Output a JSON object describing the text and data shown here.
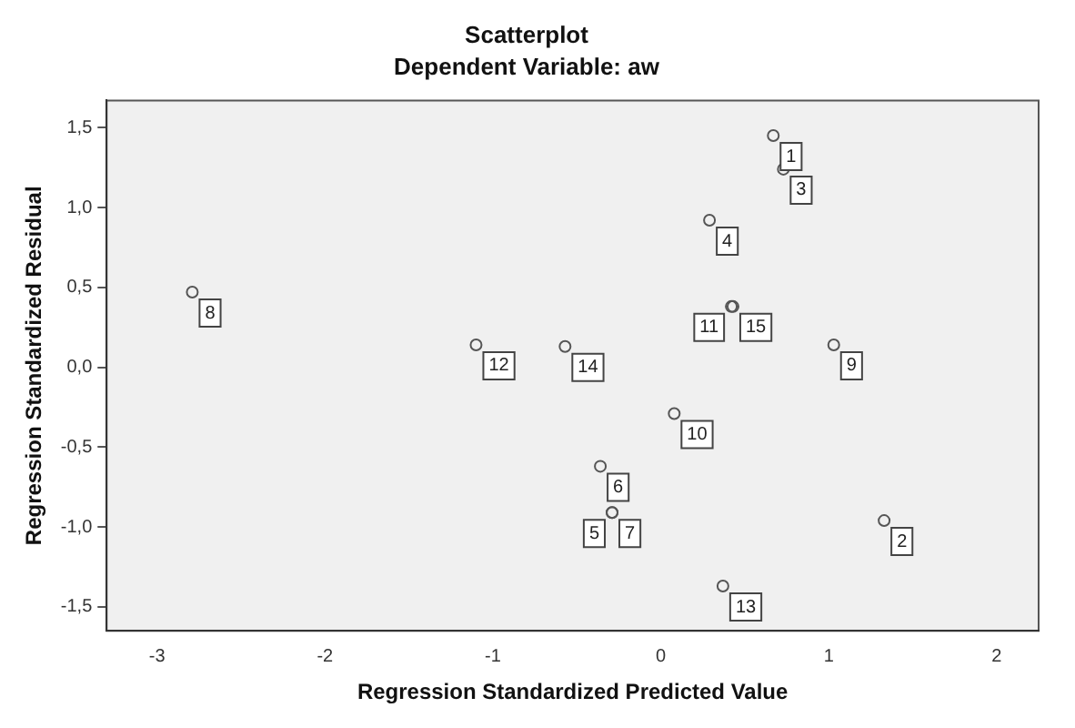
{
  "chart_data": {
    "type": "scatter",
    "title": "Scatterplot",
    "subtitle": "Dependent Variable: aw",
    "xlabel": "Regression Standardized Predicted Value",
    "ylabel": "Regression Standardized Residual",
    "x": [
      0.67,
      1.33,
      0.73,
      0.29,
      -0.29,
      -0.36,
      -0.29,
      -2.79,
      1.03,
      0.08,
      0.42,
      -1.1,
      0.37,
      -0.57,
      0.43
    ],
    "series": [
      {
        "color": "#555555",
        "values": [
          1.45,
          -0.96,
          1.24,
          0.92,
          -0.91,
          -0.62,
          -0.91,
          0.47,
          0.14,
          -0.29,
          0.38,
          0.14,
          -1.37,
          0.13,
          0.38
        ]
      }
    ],
    "annotations": [
      {
        "text": "1",
        "x": 0.67,
        "y": 1.45
      },
      {
        "text": "2",
        "x": 1.33,
        "y": -0.96
      },
      {
        "text": "3",
        "x": 0.73,
        "y": 1.24
      },
      {
        "text": "4",
        "x": 0.29,
        "y": 0.92
      },
      {
        "text": "5",
        "x": -0.29,
        "y": -0.91
      },
      {
        "text": "6",
        "x": -0.36,
        "y": -0.62
      },
      {
        "text": "7",
        "x": -0.29,
        "y": -0.91
      },
      {
        "text": "8",
        "x": -2.79,
        "y": 0.47
      },
      {
        "text": "9",
        "x": 1.03,
        "y": 0.14
      },
      {
        "text": "10",
        "x": 0.08,
        "y": -0.29
      },
      {
        "text": "11",
        "x": 0.42,
        "y": 0.38
      },
      {
        "text": "12",
        "x": -1.1,
        "y": 0.14
      },
      {
        "text": "13",
        "x": 0.37,
        "y": -1.37
      },
      {
        "text": "14",
        "x": -0.57,
        "y": 0.13
      },
      {
        "text": "15",
        "x": 0.43,
        "y": 0.38
      }
    ],
    "xlim": [
      -3.3,
      2.25
    ],
    "ylim": [
      -1.65,
      1.67
    ],
    "xticks": [
      -3,
      -2,
      -1,
      0,
      1,
      2
    ],
    "yticks": [
      {
        "value": -1.5,
        "label": "-1,5"
      },
      {
        "value": -1,
        "label": "-1,0"
      },
      {
        "value": -0.5,
        "label": "-0,5"
      },
      {
        "value": 0,
        "label": "0,0"
      },
      {
        "value": 0.5,
        "label": "0,5"
      },
      {
        "value": 1,
        "label": "1,0"
      },
      {
        "value": 1.5,
        "label": "1,5"
      }
    ],
    "marker": "circle",
    "grid": false,
    "legend": false
  }
}
